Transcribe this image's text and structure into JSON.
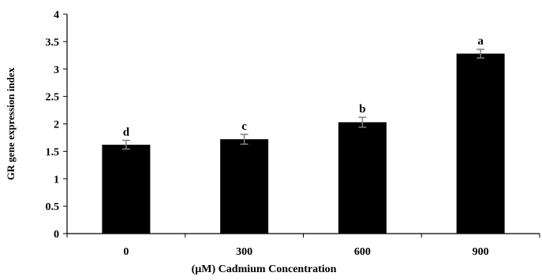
{
  "chart_data": {
    "type": "bar",
    "title": "",
    "xlabel": "(µM) Cadmium  Concentration",
    "ylabel": "GR gene expression index",
    "categories": [
      "0",
      "300",
      "600",
      "900"
    ],
    "values": [
      1.62,
      1.72,
      2.03,
      3.28
    ],
    "error": [
      0.08,
      0.09,
      0.09,
      0.08
    ],
    "significance": [
      "d",
      "c",
      "b",
      "a"
    ],
    "ylim": [
      0,
      4
    ],
    "yticks": [
      "0",
      "0.5",
      "1",
      "1.5",
      "2",
      "2.5",
      "3",
      "3.5",
      "4"
    ],
    "grid": false,
    "legend": "none",
    "bar_color": "#000000",
    "error_color": "#7f7f7f"
  }
}
